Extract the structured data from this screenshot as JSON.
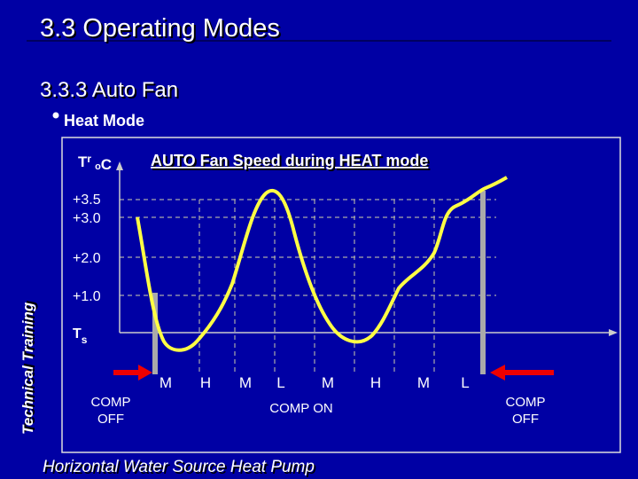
{
  "header": {
    "title": "3.3 Operating Modes",
    "subtitle": "3.3.3 Auto Fan",
    "bullet": "Heat Mode"
  },
  "diagram": {
    "title": "AUTO Fan Speed during HEAT mode",
    "y_axis": {
      "symbol": "T",
      "subscript": "r",
      "degree": "o",
      "unit": "C"
    },
    "y_labels": [
      "+3.5",
      "+3.0",
      "+2.0",
      "+1.0"
    ],
    "x_axis": {
      "symbol": "T",
      "subscript": "s"
    },
    "speeds": [
      "M",
      "H",
      "M",
      "L",
      "M",
      "H",
      "M",
      "L"
    ],
    "states": [
      {
        "line1": "COMP",
        "line2": "OFF"
      },
      {
        "line1": "COMP ON"
      },
      {
        "line1": "COMP",
        "line2": "OFF"
      }
    ]
  },
  "sidebar": "Technical Training",
  "footer": "Horizontal Water Source Heat Pump"
}
